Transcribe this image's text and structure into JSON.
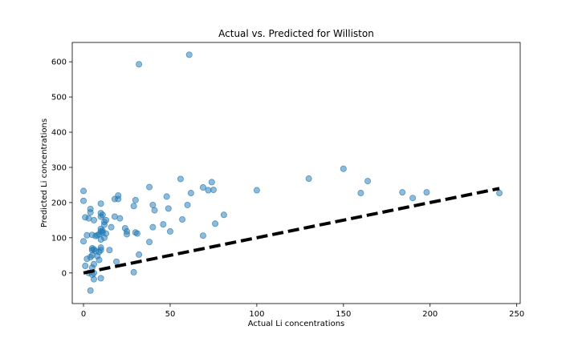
{
  "chart_data": {
    "type": "scatter",
    "title": "Actual vs. Predicted for Williston",
    "xlabel": "Actual Li concentrations",
    "ylabel": "Predicted Li concentrations",
    "xlim": [
      -6.5,
      252
    ],
    "ylim": [
      -87,
      655
    ],
    "xticks": [
      0,
      50,
      100,
      150,
      200,
      250
    ],
    "yticks": [
      0,
      100,
      200,
      300,
      400,
      500,
      600
    ],
    "grid": false,
    "legend": "none",
    "colors": {
      "points": "#1f77b4",
      "reference_line": "#000000"
    },
    "reference_line": {
      "style": "dashed",
      "from": [
        0,
        0
      ],
      "to": [
        240,
        240
      ]
    },
    "points": [
      [
        0,
        233
      ],
      [
        0,
        205
      ],
      [
        0,
        90
      ],
      [
        1,
        158
      ],
      [
        1,
        20
      ],
      [
        2,
        107
      ],
      [
        2,
        40
      ],
      [
        3,
        155
      ],
      [
        3,
        0
      ],
      [
        4,
        45
      ],
      [
        4,
        -50
      ],
      [
        4,
        172
      ],
      [
        4,
        182
      ],
      [
        5,
        70
      ],
      [
        5,
        65
      ],
      [
        5,
        50
      ],
      [
        5,
        15
      ],
      [
        5,
        -5
      ],
      [
        5,
        108
      ],
      [
        6,
        -18
      ],
      [
        6,
        0
      ],
      [
        6,
        67
      ],
      [
        6,
        25
      ],
      [
        6,
        150
      ],
      [
        7,
        105
      ],
      [
        7,
        62
      ],
      [
        8,
        107
      ],
      [
        8,
        48
      ],
      [
        9,
        110
      ],
      [
        9,
        60
      ],
      [
        9,
        37
      ],
      [
        10,
        170
      ],
      [
        10,
        197
      ],
      [
        10,
        160
      ],
      [
        10,
        125
      ],
      [
        10,
        118
      ],
      [
        10,
        95
      ],
      [
        10,
        72
      ],
      [
        10,
        65
      ],
      [
        10,
        -15
      ],
      [
        11,
        165
      ],
      [
        11,
        120
      ],
      [
        11,
        115
      ],
      [
        12,
        145
      ],
      [
        12,
        137
      ],
      [
        12,
        100
      ],
      [
        13,
        112
      ],
      [
        13,
        150
      ],
      [
        15,
        65
      ],
      [
        16,
        130
      ],
      [
        18,
        210
      ],
      [
        18,
        160
      ],
      [
        19,
        32
      ],
      [
        20,
        220
      ],
      [
        20,
        210
      ],
      [
        21,
        155
      ],
      [
        24,
        127
      ],
      [
        25,
        110
      ],
      [
        25,
        118
      ],
      [
        29,
        190
      ],
      [
        29,
        2
      ],
      [
        30,
        207
      ],
      [
        30,
        115
      ],
      [
        31,
        112
      ],
      [
        32,
        52
      ],
      [
        32,
        593
      ],
      [
        38,
        244
      ],
      [
        38,
        88
      ],
      [
        40,
        193
      ],
      [
        40,
        130
      ],
      [
        41,
        178
      ],
      [
        46,
        138
      ],
      [
        48,
        217
      ],
      [
        49,
        183
      ],
      [
        50,
        118
      ],
      [
        56,
        267
      ],
      [
        57,
        152
      ],
      [
        60,
        193
      ],
      [
        61,
        620
      ],
      [
        62,
        227
      ],
      [
        69,
        243
      ],
      [
        69,
        106
      ],
      [
        72,
        235
      ],
      [
        74,
        258
      ],
      [
        75,
        236
      ],
      [
        76,
        140
      ],
      [
        81,
        165
      ],
      [
        100,
        235
      ],
      [
        130,
        268
      ],
      [
        150,
        296
      ],
      [
        160,
        227
      ],
      [
        164,
        261
      ],
      [
        184,
        229
      ],
      [
        190,
        213
      ],
      [
        198,
        229
      ],
      [
        240,
        227
      ]
    ]
  }
}
